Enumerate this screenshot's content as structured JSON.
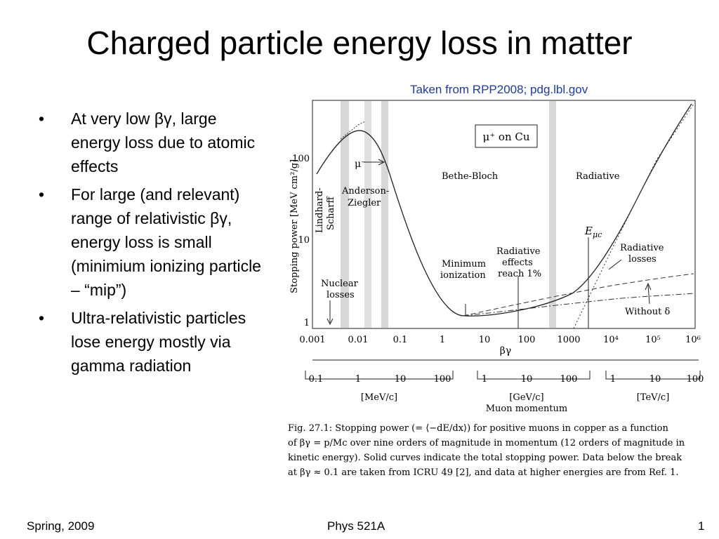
{
  "title": "Charged particle energy loss in matter",
  "credit": "Taken from RPP2008; pdg.lbl.gov",
  "bullets": [
    "At very low βγ, large energy loss due to atomic effects",
    "For large (and relevant) range of relativistic βγ, energy loss is small (minimium ionizing particle – “mip”)",
    "Ultra-relativistic particles lose energy mostly via gamma radiation"
  ],
  "figure": {
    "ylabel": "Stopping power [MeV cm²/g]",
    "xlabel": "βγ",
    "yticks": [
      "1",
      "10",
      "100"
    ],
    "xticks": [
      "0.001",
      "0.01",
      "0.1",
      "1",
      "10",
      "100",
      "1000",
      "10⁴",
      "10⁵",
      "10⁶"
    ],
    "box_label": "μ⁺ on Cu",
    "labels": {
      "mu_minus": "μ⁻",
      "anderson": "Anderson-\nZiegler",
      "lindhard": "Lindhard-\nScharff",
      "bethe": "Bethe-Bloch",
      "radiative": "Radiative",
      "nuclear": "Nuclear\nlosses",
      "minimum": "Minimum\nionization",
      "rad_effects": "Radiative\neffects\nreach 1%",
      "emuc": "Eμc",
      "rad_losses": "Radiative\nlosses",
      "without_delta": "Without δ"
    },
    "momentum_title": "Muon momentum",
    "momentum_groups": [
      {
        "unit": "[MeV/c]",
        "ticks": [
          "0.1",
          "1",
          "10",
          "100"
        ]
      },
      {
        "unit": "[GeV/c]",
        "ticks": [
          "1",
          "10",
          "100"
        ]
      },
      {
        "unit": "[TeV/c]",
        "ticks": [
          "1",
          "10",
          "100"
        ]
      }
    ],
    "caption": [
      "Fig. 27.1: Stopping power (= ⟨−dE/dx⟩) for positive muons in copper as a function",
      "of βγ = p/Mc over nine orders of magnitude in momentum (12 orders of magnitude in",
      "kinetic energy). Solid curves indicate the total stopping power. Data below the break",
      "at βγ ≈ 0.1 are taken from ICRU 49 [2],  and data at higher energies are from Ref. 1."
    ]
  },
  "footer": {
    "left": "Spring, 2009",
    "center": "Phys 521A",
    "right": "1"
  }
}
